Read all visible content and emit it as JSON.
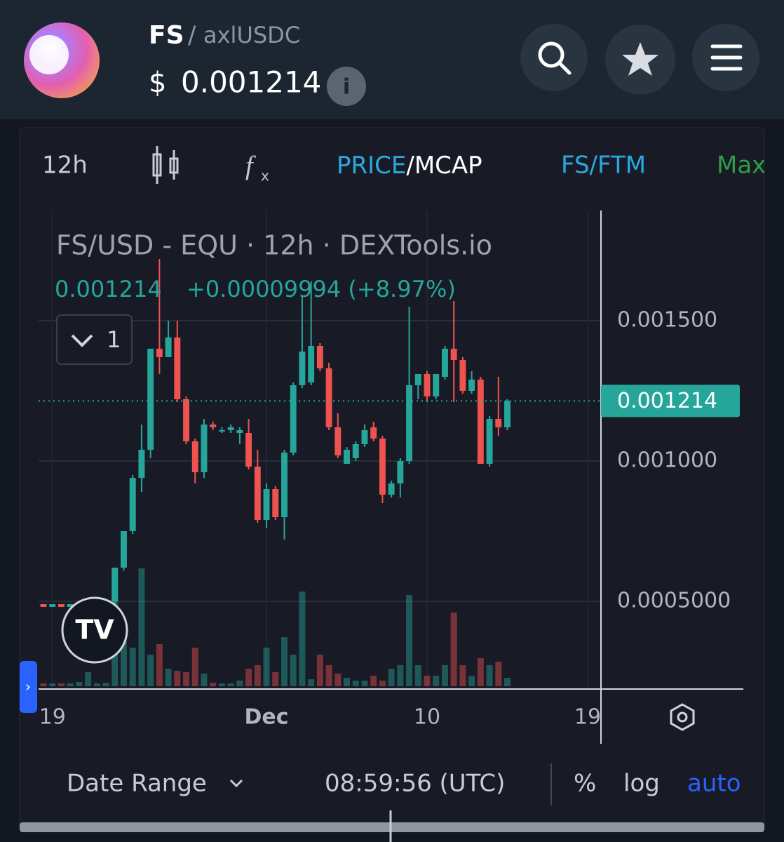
{
  "header": {
    "base": "FS",
    "quote": "axlUSDC",
    "currency": "$",
    "price": "0.001214"
  },
  "toolbar": {
    "interval": "12h",
    "price": "PRICE",
    "mcap": "/MCAP",
    "pair": "FS/FTM",
    "range": "Max"
  },
  "footer": {
    "date_range": "Date Range",
    "time": "08:59:56 (UTC)",
    "percent": "%",
    "log": "log",
    "auto": "auto"
  },
  "chart_data": {
    "type": "candlestick",
    "title": "FS/USD - EQU · 12h · DEXTools.io",
    "change": "+0.00009994 (+8.97%)",
    "indicator_count": "1",
    "last_price": 0.001214,
    "up_color": "#26a69a",
    "down_color": "#ef5350",
    "categories": [
      null,
      "19",
      null,
      null,
      null,
      null,
      null,
      null,
      null,
      null,
      null,
      null,
      null,
      null,
      null,
      null,
      null,
      null,
      null,
      null,
      null,
      null,
      null,
      null,
      null,
      "Dec",
      null,
      null,
      null,
      null,
      null,
      null,
      null,
      null,
      null,
      null,
      null,
      null,
      null,
      null,
      null,
      null,
      null,
      "10",
      null,
      null,
      null,
      null,
      null,
      null,
      null,
      null,
      null,
      null,
      null,
      null,
      null,
      null,
      null,
      null,
      null,
      "19"
    ],
    "open": [
      0.00049,
      0.00048,
      0.00049,
      0.00048,
      0.00049,
      0.00049,
      0.00049,
      0.00049,
      0.0005,
      0.00062,
      0.00075,
      0.00094,
      0.00104,
      0.0014,
      0.00137,
      0.00144,
      0.00122,
      0.00107,
      0.00096,
      0.00113,
      0.00111,
      0.00111,
      0.0011,
      0.0011,
      0.00098,
      0.00079,
      0.0009,
      0.0008,
      0.00103,
      0.00127,
      0.00128,
      0.00141,
      0.00133,
      0.00112,
      0.00099,
      0.00101,
      0.00106,
      0.00112,
      0.00108,
      0.00088,
      0.00092,
      0.001,
      0.00127,
      0.00131,
      0.00123,
      0.0013,
      0.0014,
      0.00136,
      0.00125,
      0.00129,
      0.00099,
      0.00115,
      0.00112,
      null,
      null,
      null,
      null,
      null,
      null,
      null,
      null,
      null
    ],
    "high": [
      0.00049,
      0.00049,
      0.00049,
      0.00049,
      0.00049,
      0.0005,
      0.0005,
      0.0005,
      0.00062,
      0.00075,
      0.00095,
      0.00113,
      0.0014,
      0.00172,
      0.0015,
      0.0015,
      0.00123,
      0.00108,
      0.00115,
      0.00114,
      0.00112,
      0.00113,
      0.00112,
      0.00115,
      0.00104,
      0.00092,
      0.00091,
      0.00104,
      0.00128,
      0.00159,
      0.00164,
      0.00142,
      0.00135,
      0.00117,
      0.00105,
      0.00107,
      0.00113,
      0.00114,
      0.00109,
      0.00093,
      0.00101,
      0.00155,
      0.00131,
      0.00132,
      0.00131,
      0.00141,
      0.00157,
      0.00137,
      0.00132,
      0.0013,
      0.00116,
      0.0013,
      0.00122,
      null,
      null,
      null,
      null,
      null,
      null,
      null,
      null,
      null
    ],
    "low": [
      0.00048,
      0.00048,
      0.00048,
      0.00048,
      0.00048,
      0.00048,
      0.00048,
      0.00048,
      0.00049,
      0.00061,
      0.00074,
      0.00089,
      0.00101,
      0.00131,
      0.00137,
      0.00121,
      0.00106,
      0.00092,
      0.00094,
      0.00111,
      0.0011,
      0.0011,
      0.00106,
      0.00097,
      0.00078,
      0.00076,
      0.00079,
      0.00072,
      0.00102,
      0.00126,
      0.00127,
      0.00132,
      0.00111,
      0.00101,
      0.00099,
      0.001,
      0.00105,
      0.00107,
      0.00085,
      0.00087,
      0.00087,
      0.00099,
      0.00122,
      0.00121,
      0.00122,
      0.00129,
      0.00121,
      0.00124,
      0.00124,
      0.00099,
      0.00098,
      0.00109,
      0.00111,
      null,
      null,
      null,
      null,
      null,
      null,
      null,
      null,
      null
    ],
    "close": [
      0.00048,
      0.00049,
      0.00048,
      0.00049,
      0.00049,
      0.00049,
      0.00049,
      0.0005,
      0.00062,
      0.00075,
      0.00094,
      0.00104,
      0.0014,
      0.00137,
      0.00144,
      0.00122,
      0.00107,
      0.00096,
      0.00113,
      0.00112,
      0.00111,
      0.00112,
      0.00111,
      0.00098,
      0.00079,
      0.0009,
      0.0008,
      0.00103,
      0.00127,
      0.00139,
      0.00141,
      0.00133,
      0.00112,
      0.00102,
      0.00104,
      0.00106,
      0.00111,
      0.00108,
      0.00088,
      0.00092,
      0.001,
      0.00127,
      0.00131,
      0.00123,
      0.00131,
      0.0014,
      0.00136,
      0.00125,
      0.00129,
      0.00099,
      0.00115,
      0.00112,
      0.001214,
      null,
      null,
      null,
      null,
      null,
      null,
      null,
      null,
      null
    ],
    "volume": [
      4,
      4,
      4,
      4,
      6,
      20,
      4,
      5,
      165,
      65,
      55,
      168,
      45,
      60,
      25,
      22,
      20,
      55,
      18,
      5,
      4,
      4,
      8,
      25,
      30,
      55,
      20,
      70,
      45,
      135,
      10,
      45,
      30,
      18,
      12,
      8,
      8,
      15,
      8,
      25,
      30,
      130,
      30,
      15,
      15,
      30,
      105,
      30,
      15,
      40,
      30,
      35,
      12,
      null,
      null,
      null,
      null,
      null,
      null,
      null,
      null,
      null
    ],
    "ylim": [
      0.0001925,
      0.0018925
    ],
    "yticks": [
      {
        "value": 0.0005,
        "label": "0.0005000"
      },
      {
        "value": 0.001,
        "label": "0.001000"
      },
      {
        "value": 0.0015,
        "label": "0.001500"
      }
    ],
    "grid": true
  }
}
